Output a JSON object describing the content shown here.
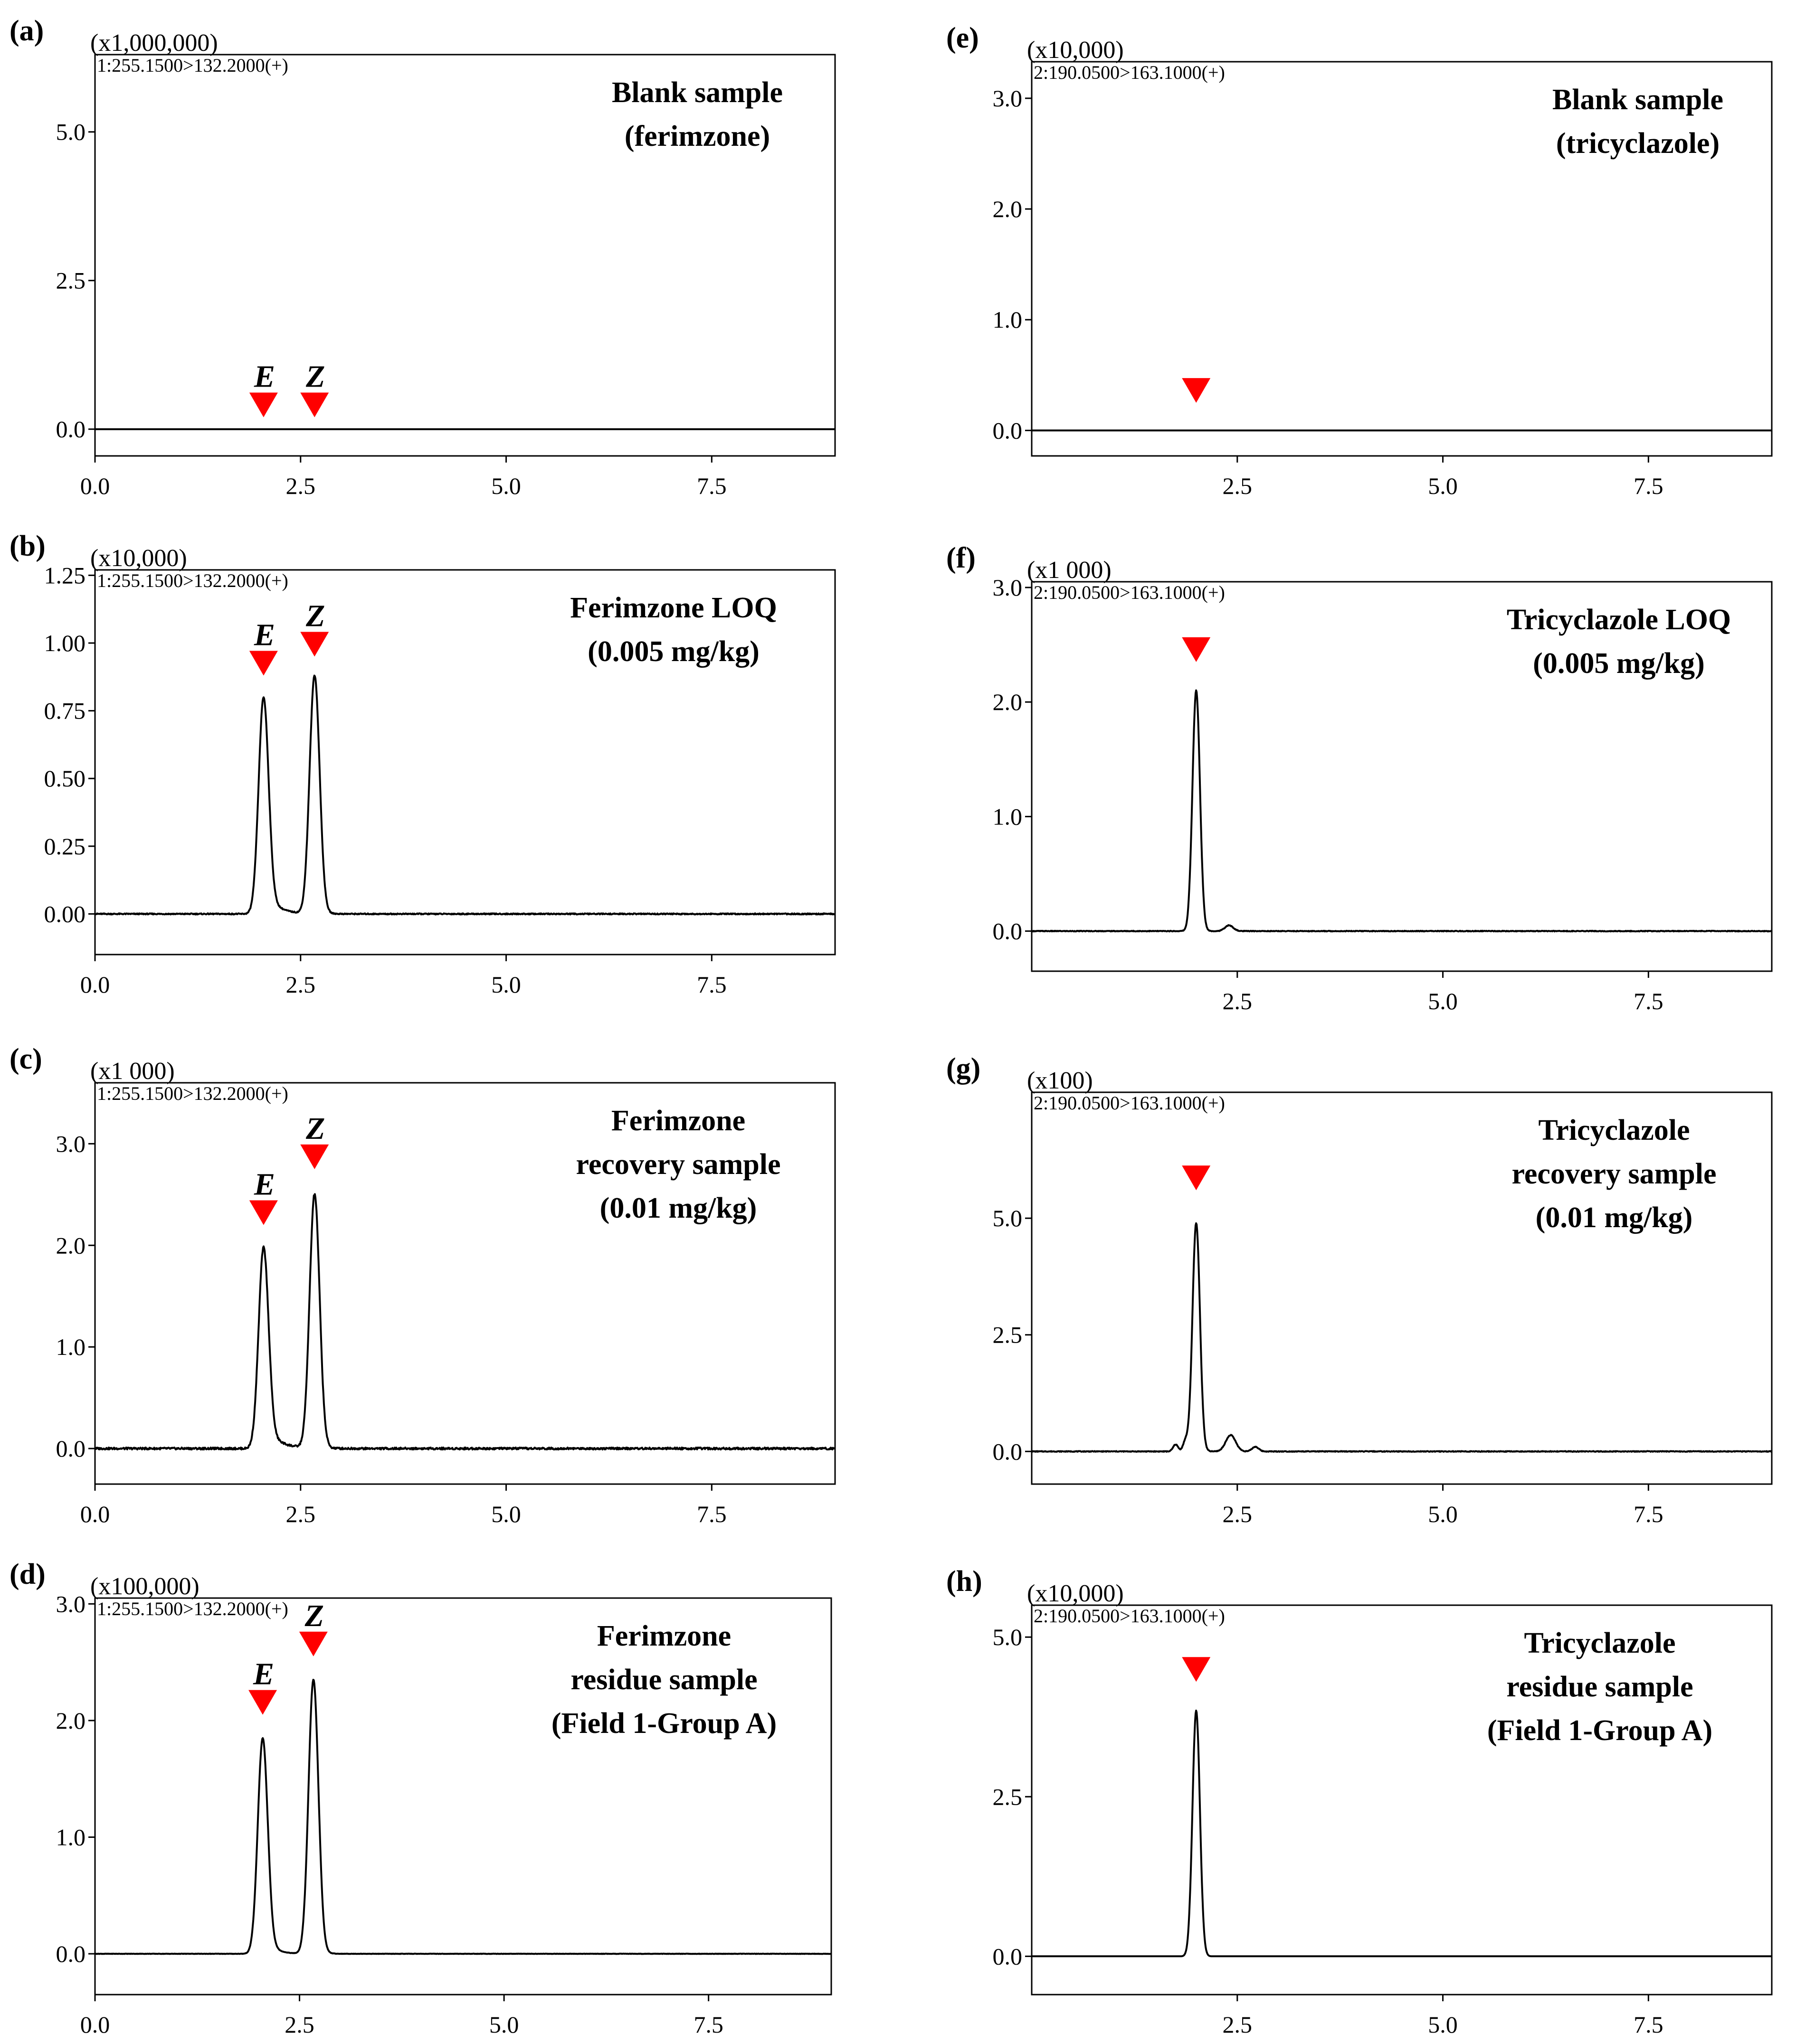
{
  "figure": {
    "panel_count": 8,
    "marker_color": "#ff0000",
    "trace_color": "#000000"
  },
  "chart_data": [
    {
      "id": "a",
      "panel_label": "(a)",
      "type": "line",
      "title": [
        "Blank sample",
        "(ferimzone)"
      ],
      "scale_label": "(x1,000,000)",
      "channel_label": "1:255.1500>132.2000(+)",
      "xlim": [
        0,
        9
      ],
      "ylim": [
        -0.45,
        6.3
      ],
      "xticks": [
        0,
        2.5,
        5,
        7.5
      ],
      "xtick_labels": [
        "0.0",
        "2.5",
        "5.0",
        "7.5"
      ],
      "yticks": [
        0,
        2.5,
        5
      ],
      "ytick_labels": [
        "0.0",
        "2.5",
        "5.0"
      ],
      "baseline": 0,
      "noise": 0,
      "peaks": [],
      "markers": [
        {
          "x": 2.05,
          "y": 0.2,
          "label": "E"
        },
        {
          "x": 2.67,
          "y": 0.2,
          "label": "Z"
        }
      ]
    },
    {
      "id": "b",
      "panel_label": "(b)",
      "type": "line",
      "title": [
        "Ferimzone  LOQ",
        "(0.005 mg/kg)"
      ],
      "scale_label": "(x10,000)",
      "channel_label": "1:255.1500>132.2000(+)",
      "xlim": [
        0,
        9
      ],
      "ylim": [
        -0.15,
        1.27
      ],
      "xticks": [
        0,
        2.5,
        5,
        7.5
      ],
      "xtick_labels": [
        "0.0",
        "2.5",
        "5.0",
        "7.5"
      ],
      "yticks": [
        0,
        0.25,
        0.5,
        0.75,
        1.0,
        1.25
      ],
      "ytick_labels": [
        "0.00",
        "0.25",
        "0.50",
        "0.75",
        "1.00",
        "1.25"
      ],
      "baseline": 0,
      "noise": 0.004,
      "peaks": [
        {
          "x": 2.05,
          "height": 0.8,
          "width": 0.06,
          "tail": 0.14
        },
        {
          "x": 2.67,
          "height": 0.88,
          "width": 0.06,
          "tail": 0.05
        }
      ],
      "markers": [
        {
          "x": 2.05,
          "y": 0.88,
          "label": "E"
        },
        {
          "x": 2.67,
          "y": 0.95,
          "label": "Z"
        }
      ]
    },
    {
      "id": "c",
      "panel_label": "(c)",
      "type": "line",
      "title": [
        "Ferimzone",
        "recovery sample",
        "(0.01 mg/kg)"
      ],
      "scale_label": "(x1 000)",
      "channel_label": "1:255.1500>132.2000(+)",
      "xlim": [
        0,
        9
      ],
      "ylim": [
        -0.35,
        3.6
      ],
      "xticks": [
        0,
        2.5,
        5,
        7.5
      ],
      "xtick_labels": [
        "0.0",
        "2.5",
        "5.0",
        "7.5"
      ],
      "yticks": [
        0,
        1,
        2,
        3
      ],
      "ytick_labels": [
        "0.0",
        "1.0",
        "2.0",
        "3.0"
      ],
      "baseline": 0,
      "noise": 0.02,
      "peaks": [
        {
          "x": 2.05,
          "height": 1.98,
          "width": 0.06,
          "tail": 0.16
        },
        {
          "x": 2.67,
          "height": 2.5,
          "width": 0.06,
          "tail": 0.05
        }
      ],
      "markers": [
        {
          "x": 2.05,
          "y": 2.2,
          "label": "E"
        },
        {
          "x": 2.67,
          "y": 2.75,
          "label": "Z"
        }
      ]
    },
    {
      "id": "d",
      "panel_label": "(d)",
      "type": "line",
      "title": [
        "Ferimzone",
        "residue sample",
        "(Field 1-Group A)"
      ],
      "scale_label": "(x100,000)",
      "channel_label": "1:255.1500>132.2000(+)",
      "xlim": [
        0,
        9
      ],
      "ylim": [
        -0.35,
        3.05
      ],
      "xticks": [
        0,
        2.5,
        5,
        7.5
      ],
      "xtick_labels": [
        "0.0",
        "2.5",
        "5.0",
        "7.5"
      ],
      "yticks": [
        0,
        1,
        2,
        3
      ],
      "ytick_labels": [
        "0.0",
        "1.0",
        "2.0",
        "3.0"
      ],
      "baseline": 0,
      "noise": 0.003,
      "peaks": [
        {
          "x": 2.05,
          "height": 1.85,
          "width": 0.06,
          "tail": 0.1
        },
        {
          "x": 2.67,
          "height": 2.35,
          "width": 0.06,
          "tail": 0.05
        }
      ],
      "markers": [
        {
          "x": 2.05,
          "y": 2.05,
          "label": "E"
        },
        {
          "x": 2.67,
          "y": 2.55,
          "label": "Z"
        }
      ]
    },
    {
      "id": "e",
      "panel_label": "(e)",
      "type": "line",
      "title": [
        "Blank sample",
        "(tricyclazole)"
      ],
      "scale_label": "(x10,000)",
      "channel_label": "2:190.0500>163.1000(+)",
      "xlim": [
        0,
        9
      ],
      "ylim": [
        -0.23,
        3.33
      ],
      "xticks": [
        2.5,
        5,
        7.5
      ],
      "xtick_labels": [
        "2.5",
        "5.0",
        "7.5"
      ],
      "yticks": [
        0,
        1,
        2,
        3
      ],
      "ytick_labels": [
        "0.0",
        "1.0",
        "2.0",
        "3.0"
      ],
      "baseline": 0,
      "noise": 0,
      "peaks": [],
      "markers": [
        {
          "x": 2.0,
          "y": 0.25,
          "label": ""
        }
      ]
    },
    {
      "id": "f",
      "panel_label": "(f)",
      "type": "line",
      "title": [
        "Tricyclazole  LOQ",
        "(0.005 mg/kg)"
      ],
      "scale_label": "(x1 000)",
      "channel_label": "2:190.0500>163.1000(+)",
      "xlim": [
        0,
        9
      ],
      "ylim": [
        -0.35,
        3.05
      ],
      "xticks": [
        2.5,
        5,
        7.5
      ],
      "xtick_labels": [
        "2.5",
        "5.0",
        "7.5"
      ],
      "yticks": [
        0,
        1,
        2,
        3
      ],
      "ytick_labels": [
        "0.0",
        "1.0",
        "2.0",
        "3.0"
      ],
      "baseline": 0,
      "noise": 0.006,
      "peaks": [
        {
          "x": 2.0,
          "height": 2.1,
          "width": 0.045,
          "tail": 0.03
        },
        {
          "x": 2.4,
          "height": 0.05,
          "width": 0.05,
          "tail": 0
        }
      ],
      "markers": [
        {
          "x": 2.0,
          "y": 2.35,
          "label": ""
        }
      ]
    },
    {
      "id": "g",
      "panel_label": "(g)",
      "type": "line",
      "title": [
        "Tricyclazole",
        "recovery sample",
        "(0.01 mg/kg)"
      ],
      "scale_label": "(x100)",
      "channel_label": "2:190.0500>163.1000(+)",
      "xlim": [
        0,
        9
      ],
      "ylim": [
        -0.7,
        7.7
      ],
      "xticks": [
        2.5,
        5,
        7.5
      ],
      "xtick_labels": [
        "2.5",
        "5.0",
        "7.5"
      ],
      "yticks": [
        0,
        2.5,
        5
      ],
      "ytick_labels": [
        "0.0",
        "2.5",
        "5.0"
      ],
      "baseline": 0,
      "noise": 0.015,
      "peaks": [
        {
          "x": 2.0,
          "height": 4.9,
          "width": 0.045,
          "tail": 0.03
        },
        {
          "x": 1.75,
          "height": 0.15,
          "width": 0.03,
          "tail": 0
        },
        {
          "x": 1.87,
          "height": 0.22,
          "width": 0.03,
          "tail": 0
        },
        {
          "x": 2.42,
          "height": 0.35,
          "width": 0.06,
          "tail": 0
        },
        {
          "x": 2.72,
          "height": 0.1,
          "width": 0.04,
          "tail": 0
        }
      ],
      "markers": [
        {
          "x": 2.0,
          "y": 5.6,
          "label": ""
        }
      ]
    },
    {
      "id": "h",
      "panel_label": "(h)",
      "type": "line",
      "title": [
        "Tricyclazole",
        "residue sample",
        "(Field 1-Group A)"
      ],
      "scale_label": "(x10,000)",
      "channel_label": "2:190.0500>163.1000(+)",
      "xlim": [
        0,
        9
      ],
      "ylim": [
        -0.6,
        5.5
      ],
      "xticks": [
        2.5,
        5,
        7.5
      ],
      "xtick_labels": [
        "2.5",
        "5.0",
        "7.5"
      ],
      "yticks": [
        0,
        2.5,
        5
      ],
      "ytick_labels": [
        "0.0",
        "2.5",
        "5.0"
      ],
      "baseline": 0,
      "noise": 0,
      "peaks": [
        {
          "x": 2.0,
          "height": 3.85,
          "width": 0.045,
          "tail": 0.02
        }
      ],
      "markers": [
        {
          "x": 2.0,
          "y": 4.3,
          "label": ""
        }
      ]
    }
  ]
}
